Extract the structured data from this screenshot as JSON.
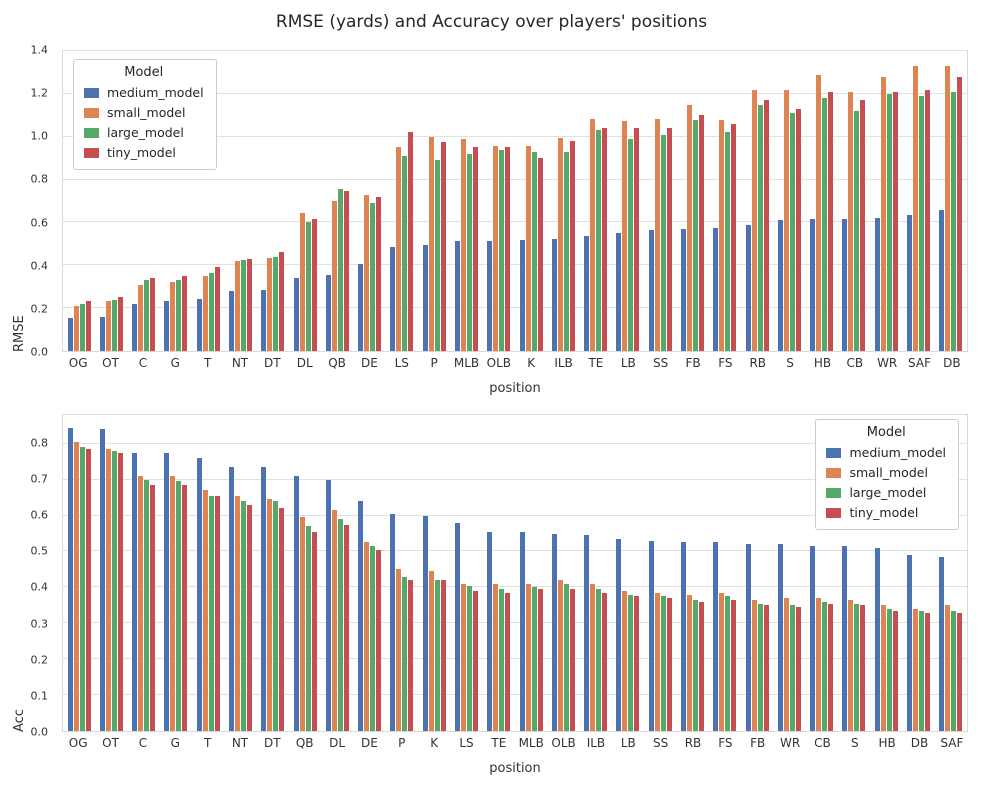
{
  "title": "RMSE (yards) and Accuracy over players' positions",
  "legend": {
    "title": "Model",
    "entries": [
      "medium_model",
      "small_model",
      "large_model",
      "tiny_model"
    ]
  },
  "colors": {
    "medium_model": "#4C72B0",
    "small_model": "#DD8452",
    "large_model": "#55A868",
    "tiny_model": "#C44E52"
  },
  "chart_data": [
    {
      "type": "bar",
      "title": "",
      "ylabel": "RMSE",
      "xlabel": "position",
      "ylim": [
        0,
        1.4
      ],
      "yticks": [
        0.0,
        0.2,
        0.4,
        0.6,
        0.8,
        1.0,
        1.2,
        1.4
      ],
      "grid": true,
      "legend_position": "upper-left",
      "categories": [
        "OG",
        "OT",
        "C",
        "G",
        "T",
        "NT",
        "DT",
        "DL",
        "QB",
        "DE",
        "LS",
        "P",
        "MLB",
        "OLB",
        "K",
        "ILB",
        "TE",
        "LB",
        "SS",
        "FB",
        "FS",
        "RB",
        "S",
        "HB",
        "CB",
        "WR",
        "SAF",
        "DB"
      ],
      "series": [
        {
          "name": "medium_model",
          "color": "#4C72B0",
          "values": [
            0.155,
            0.16,
            0.22,
            0.235,
            0.245,
            0.28,
            0.285,
            0.34,
            0.355,
            0.405,
            0.485,
            0.495,
            0.515,
            0.515,
            0.52,
            0.525,
            0.535,
            0.55,
            0.565,
            0.57,
            0.575,
            0.59,
            0.61,
            0.615,
            0.615,
            0.62,
            0.635,
            0.66
          ]
        },
        {
          "name": "small_model",
          "color": "#DD8452",
          "values": [
            0.21,
            0.235,
            0.31,
            0.32,
            0.35,
            0.42,
            0.435,
            0.645,
            0.7,
            0.73,
            0.95,
            1.0,
            0.99,
            0.955,
            0.955,
            0.995,
            1.085,
            1.075,
            1.085,
            1.15,
            1.08,
            1.22,
            1.22,
            1.29,
            1.21,
            1.28,
            1.33,
            1.33
          ]
        },
        {
          "name": "large_model",
          "color": "#55A868",
          "values": [
            0.22,
            0.24,
            0.33,
            0.33,
            0.365,
            0.425,
            0.44,
            0.6,
            0.755,
            0.69,
            0.91,
            0.89,
            0.92,
            0.94,
            0.93,
            0.93,
            1.03,
            0.99,
            1.01,
            1.08,
            1.02,
            1.15,
            1.11,
            1.18,
            1.12,
            1.2,
            1.19,
            1.21
          ]
        },
        {
          "name": "tiny_model",
          "color": "#C44E52",
          "values": [
            0.235,
            0.25,
            0.34,
            0.35,
            0.39,
            0.43,
            0.46,
            0.615,
            0.745,
            0.72,
            1.02,
            0.975,
            0.95,
            0.95,
            0.9,
            0.98,
            1.04,
            1.04,
            1.04,
            1.1,
            1.06,
            1.17,
            1.13,
            1.21,
            1.17,
            1.21,
            1.22,
            1.28
          ]
        }
      ]
    },
    {
      "type": "bar",
      "title": "",
      "ylabel": "Acc",
      "xlabel": "position",
      "ylim": [
        0,
        0.88
      ],
      "yticks": [
        0.0,
        0.1,
        0.2,
        0.3,
        0.4,
        0.5,
        0.6,
        0.7,
        0.8
      ],
      "grid": true,
      "legend_position": "upper-right",
      "categories": [
        "OG",
        "OT",
        "C",
        "G",
        "T",
        "NT",
        "DT",
        "QB",
        "DL",
        "DE",
        "P",
        "K",
        "LS",
        "TE",
        "MLB",
        "OLB",
        "ILB",
        "LB",
        "SS",
        "RB",
        "FS",
        "FB",
        "WR",
        "CB",
        "S",
        "HB",
        "DB",
        "SAF"
      ],
      "series": [
        {
          "name": "medium_model",
          "color": "#4C72B0",
          "values": [
            0.845,
            0.84,
            0.775,
            0.775,
            0.76,
            0.735,
            0.735,
            0.71,
            0.7,
            0.64,
            0.605,
            0.6,
            0.58,
            0.555,
            0.555,
            0.55,
            0.545,
            0.535,
            0.53,
            0.525,
            0.525,
            0.52,
            0.52,
            0.515,
            0.515,
            0.51,
            0.49,
            0.485
          ]
        },
        {
          "name": "small_model",
          "color": "#DD8452",
          "values": [
            0.805,
            0.785,
            0.71,
            0.71,
            0.67,
            0.655,
            0.645,
            0.595,
            0.615,
            0.525,
            0.45,
            0.445,
            0.41,
            0.41,
            0.41,
            0.42,
            0.41,
            0.39,
            0.385,
            0.38,
            0.385,
            0.365,
            0.37,
            0.37,
            0.365,
            0.35,
            0.34,
            0.35
          ]
        },
        {
          "name": "large_model",
          "color": "#55A868",
          "values": [
            0.79,
            0.78,
            0.7,
            0.695,
            0.655,
            0.64,
            0.64,
            0.57,
            0.59,
            0.515,
            0.43,
            0.42,
            0.405,
            0.395,
            0.4,
            0.41,
            0.395,
            0.38,
            0.375,
            0.365,
            0.375,
            0.355,
            0.35,
            0.36,
            0.355,
            0.34,
            0.335,
            0.335
          ]
        },
        {
          "name": "tiny_model",
          "color": "#C44E52",
          "values": [
            0.785,
            0.775,
            0.685,
            0.685,
            0.655,
            0.63,
            0.62,
            0.555,
            0.575,
            0.505,
            0.42,
            0.42,
            0.39,
            0.385,
            0.395,
            0.395,
            0.385,
            0.375,
            0.37,
            0.36,
            0.365,
            0.35,
            0.345,
            0.355,
            0.35,
            0.335,
            0.33,
            0.33
          ]
        }
      ]
    }
  ]
}
